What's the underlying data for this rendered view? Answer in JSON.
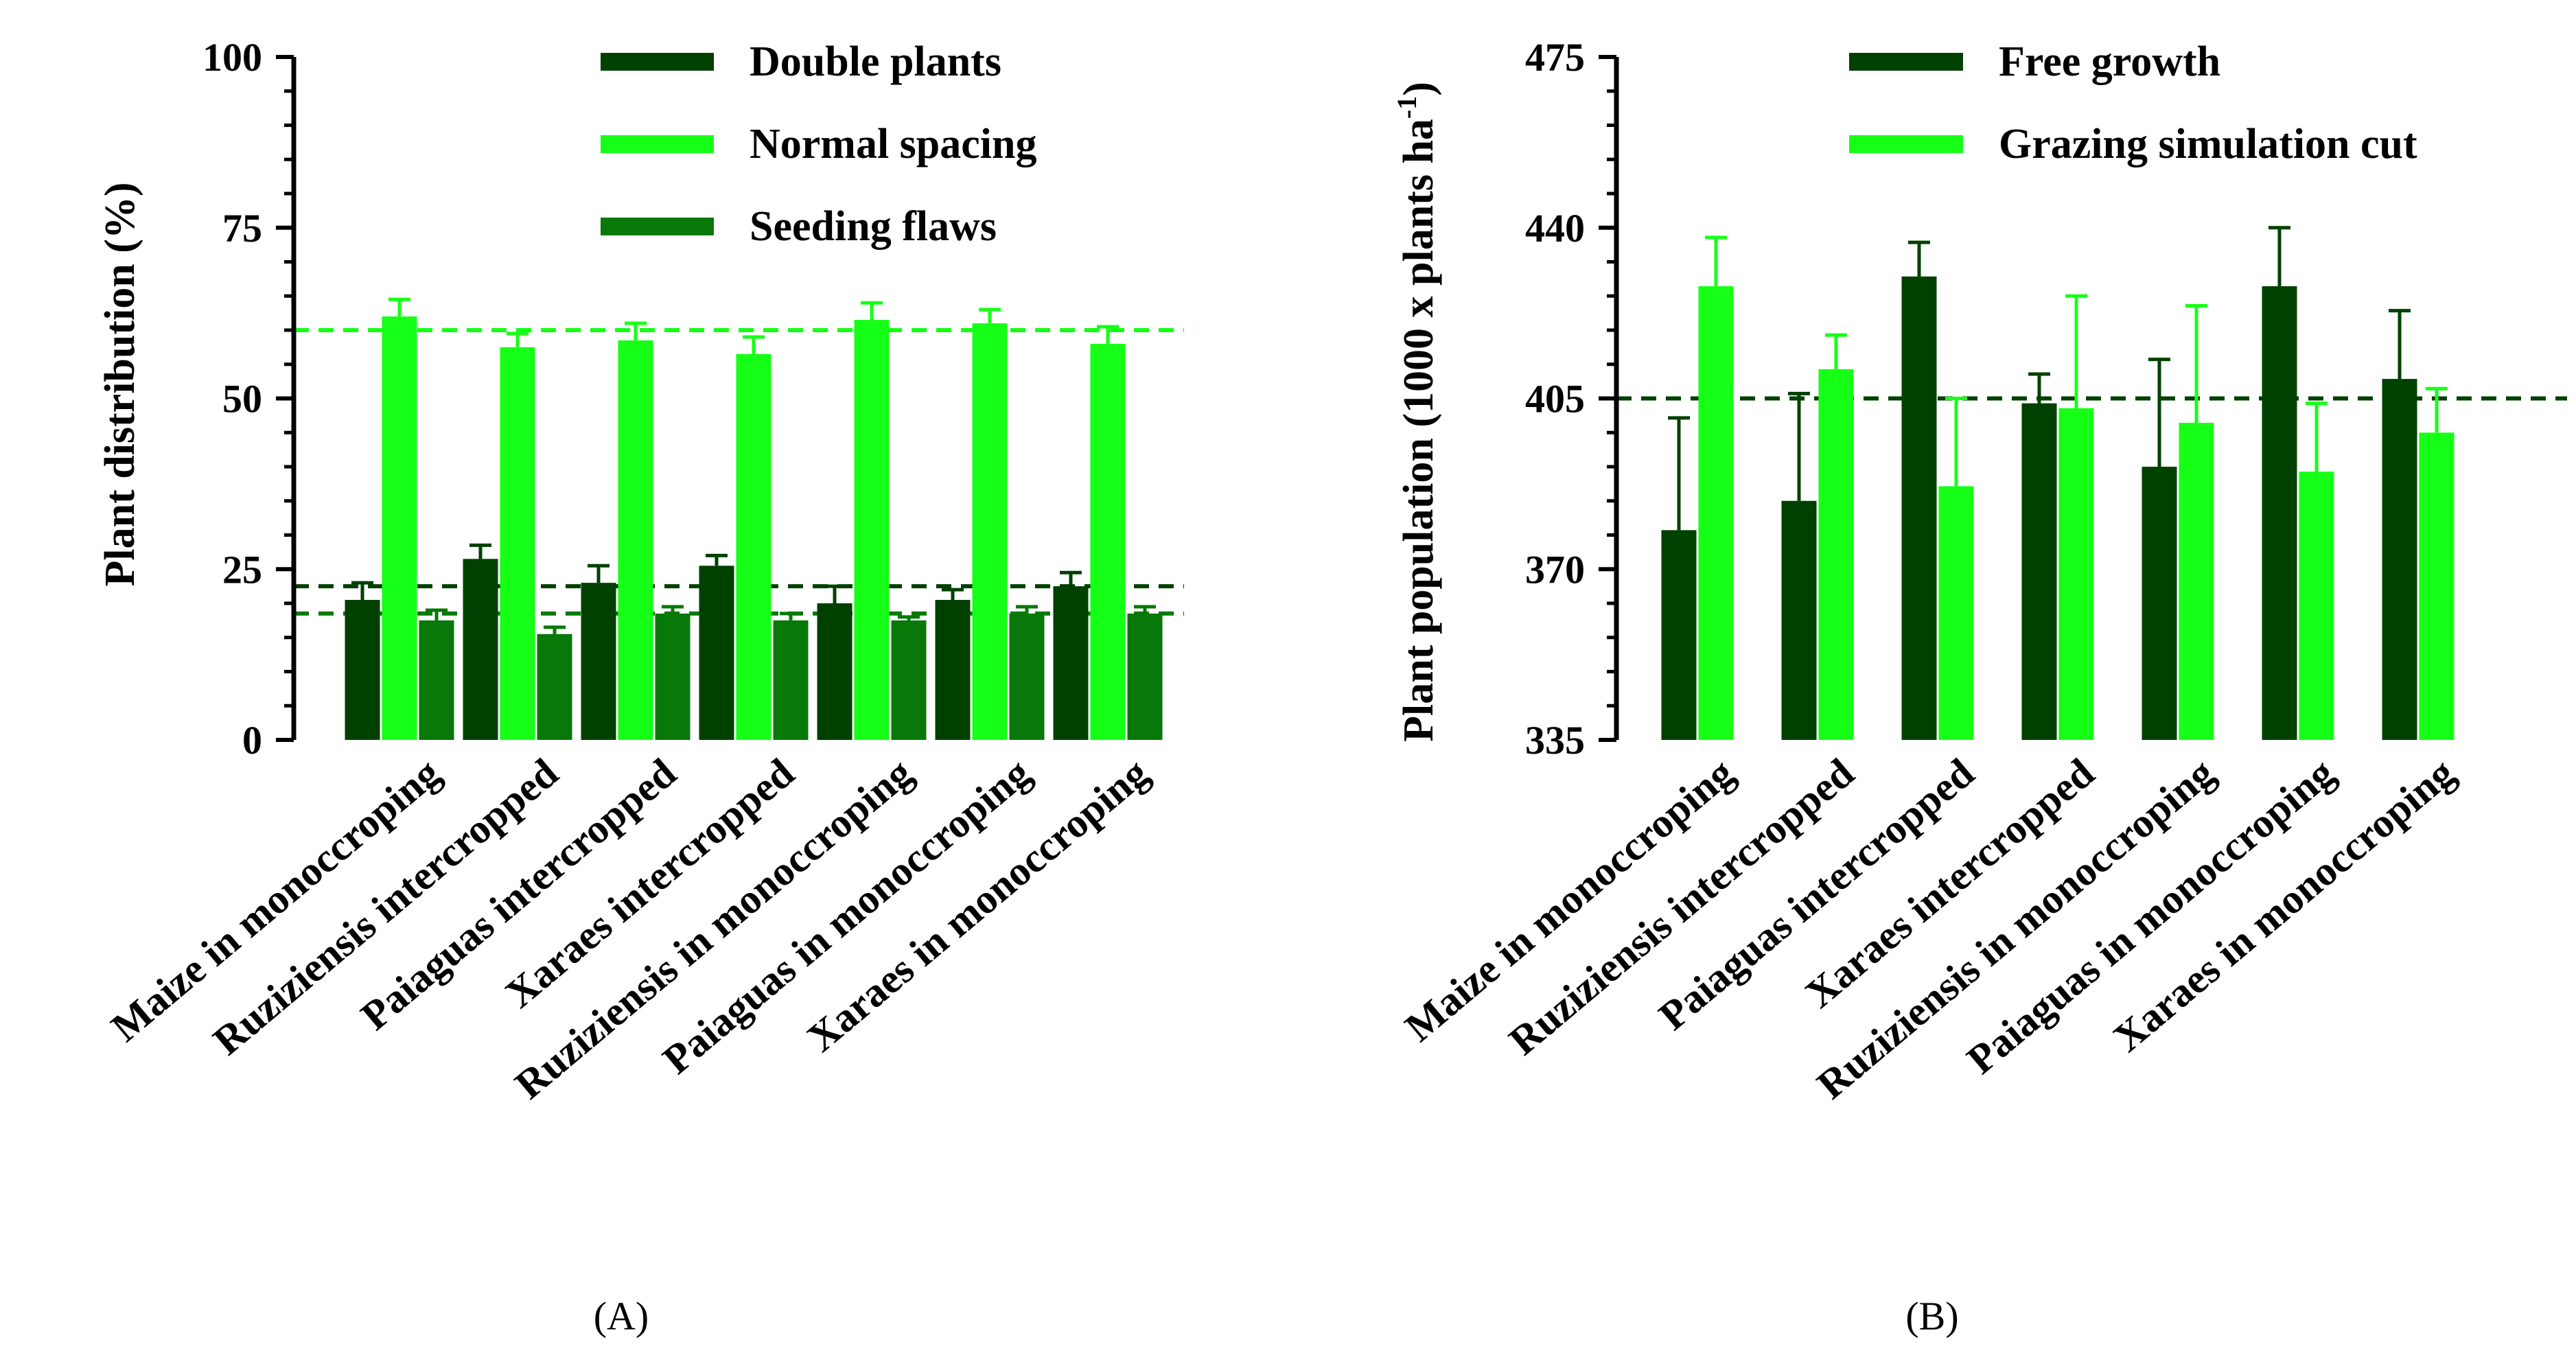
{
  "colors": {
    "dark": "#004100",
    "bright": "#16ff16",
    "medium": "#087808",
    "ref_bright": "#14ff14",
    "ref_dark": "#004000",
    "ref_medium": "#0a7a0a"
  },
  "chart_data": [
    {
      "id": "A",
      "type": "bar",
      "panel_label": "(A)",
      "ylabel": "Plant distribution (%)",
      "xlabel": "",
      "ylim": [
        0,
        100
      ],
      "yticks": [
        "0",
        "25",
        "50",
        "75",
        "100"
      ],
      "categories": [
        "Maize in monoccroping",
        "Ruziziensis  intercropped",
        "Paiaguas intercropped",
        "Xaraes intercropped",
        "Ruziziensis in monoccroping",
        "Paiaguas in monoccroping",
        "Xaraes in monoccroping"
      ],
      "series": [
        {
          "name": "Double plants",
          "color_key": "dark",
          "values": [
            20.5,
            26.5,
            23.0,
            25.5,
            20.0,
            20.5,
            22.5
          ],
          "errors": [
            2.5,
            2.0,
            2.5,
            1.5,
            2.5,
            1.5,
            2.0
          ]
        },
        {
          "name": "Normal spacing",
          "color_key": "bright",
          "values": [
            62,
            57.5,
            58.5,
            56.5,
            61.5,
            61,
            58
          ],
          "errors": [
            2.5,
            2.0,
            2.5,
            2.5,
            2.5,
            2.0,
            2.5
          ]
        },
        {
          "name": "Seeding flaws",
          "color_key": "medium",
          "values": [
            17.5,
            15.5,
            18.5,
            17.5,
            17.5,
            18.5,
            18.5
          ],
          "errors": [
            1.5,
            1.0,
            1.0,
            1.0,
            0.5,
            1.0,
            1.0
          ]
        }
      ],
      "reference_lines": [
        {
          "value": 60,
          "color_key": "ref_bright"
        },
        {
          "value": 22.5,
          "color_key": "ref_dark"
        },
        {
          "value": 18.5,
          "color_key": "ref_medium"
        }
      ],
      "legend_position": "top-right"
    },
    {
      "id": "B",
      "type": "bar",
      "panel_label": "(B)",
      "ylabel": "Plant population (1000 x plants ha",
      "ylabel_sup": "-1",
      "ylabel_close": ")",
      "xlabel": "",
      "ylim": [
        335,
        475
      ],
      "yticks": [
        "335",
        "370",
        "405",
        "440",
        "475"
      ],
      "categories": [
        "Maize in monoccroping",
        "Ruziziensis  intercropped",
        "Paiaguas intercropped",
        "Xaraes intercropped",
        "Ruziziensis in monoccroping",
        "Paiaguas in monoccroping",
        "Xaraes in monoccroping"
      ],
      "series": [
        {
          "name": "Free growth",
          "color_key": "dark",
          "values": [
            378,
            384,
            430,
            404,
            391,
            428,
            409
          ],
          "errors": [
            23,
            22,
            7,
            6,
            22,
            12,
            14
          ]
        },
        {
          "name": "Grazing simulation cut",
          "color_key": "bright",
          "values": [
            428,
            411,
            387,
            403,
            400,
            390,
            398
          ],
          "errors": [
            10,
            7,
            18,
            23,
            24,
            14,
            9
          ]
        }
      ],
      "reference_lines": [
        {
          "value": 405,
          "color_key": "ref_dark"
        }
      ],
      "legend_position": "top-right"
    }
  ]
}
